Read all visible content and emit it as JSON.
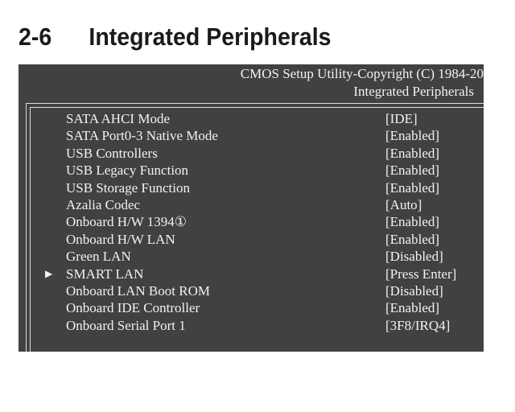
{
  "section": {
    "number": "2-6",
    "title": "Integrated Peripherals"
  },
  "bios": {
    "header_line1": "CMOS Setup Utility-Copyright (C) 1984-20",
    "header_line2": "Integrated Peripherals",
    "items": [
      {
        "label": "SATA AHCI Mode",
        "value": "[IDE]"
      },
      {
        "label": "SATA Port0-3 Native Mode",
        "value": "[Enabled]"
      },
      {
        "label": "USB Controllers",
        "value": "[Enabled]"
      },
      {
        "label": "USB Legacy Function",
        "value": "[Enabled]"
      },
      {
        "label": "USB Storage Function",
        "value": "[Enabled]"
      },
      {
        "label": "Azalia Codec",
        "value": "[Auto]"
      },
      {
        "label": "Onboard H/W 1394①",
        "value": "[Enabled]"
      },
      {
        "label": "Onboard H/W LAN",
        "value": "[Enabled]"
      },
      {
        "label": "Green LAN",
        "value": "[Disabled]"
      },
      {
        "label": "SMART LAN",
        "value": "[Press Enter]",
        "submenu": true
      },
      {
        "label": "Onboard LAN Boot ROM",
        "value": "[Disabled]"
      },
      {
        "label": "Onboard IDE Controller",
        "value": "[Enabled]"
      },
      {
        "label": "Onboard Serial Port 1",
        "value": "[3F8/IRQ4]"
      }
    ]
  }
}
